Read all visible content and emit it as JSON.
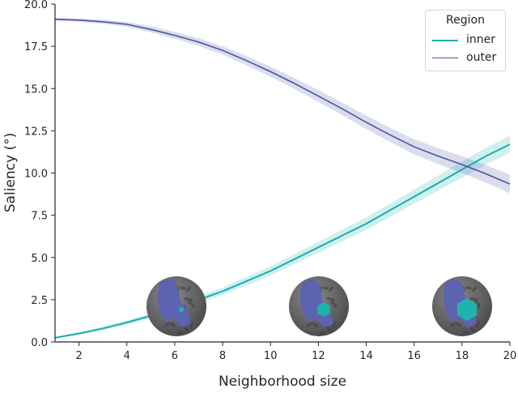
{
  "chart_data": {
    "type": "line",
    "title": "",
    "xlabel": "Neighborhood size",
    "ylabel": "Saliency  (°)",
    "xlim": [
      1,
      20
    ],
    "ylim": [
      0,
      20
    ],
    "xticks": [
      2,
      4,
      6,
      8,
      10,
      12,
      14,
      16,
      18,
      20
    ],
    "yticks": [
      "0.0",
      "2.5",
      "5.0",
      "7.5",
      "10.0",
      "12.5",
      "15.0",
      "17.5",
      "20.0"
    ],
    "grid": false,
    "legend": {
      "title": "Region",
      "position": "upper right",
      "entries": [
        "inner",
        "outer"
      ]
    },
    "x": [
      1,
      2,
      3,
      4,
      5,
      6,
      7,
      8,
      9,
      10,
      11,
      12,
      13,
      14,
      15,
      16,
      17,
      18,
      19,
      20
    ],
    "series": [
      {
        "name": "inner",
        "color": "#1aaeae",
        "values": [
          0.25,
          0.5,
          0.8,
          1.15,
          1.55,
          2.0,
          2.5,
          3.0,
          3.6,
          4.2,
          4.9,
          5.6,
          6.3,
          7.0,
          7.8,
          8.6,
          9.4,
          10.2,
          11.0,
          11.7
        ],
        "ci_halfwidth": [
          0.05,
          0.08,
          0.1,
          0.12,
          0.15,
          0.18,
          0.2,
          0.22,
          0.25,
          0.27,
          0.3,
          0.32,
          0.35,
          0.37,
          0.4,
          0.42,
          0.45,
          0.48,
          0.5,
          0.52
        ]
      },
      {
        "name": "outer",
        "color": "#4a55a2",
        "values": [
          19.1,
          19.05,
          18.95,
          18.8,
          18.5,
          18.15,
          17.75,
          17.25,
          16.65,
          16.0,
          15.3,
          14.55,
          13.8,
          13.0,
          12.25,
          11.55,
          11.0,
          10.5,
          9.95,
          9.35
        ],
        "ci_halfwidth": [
          0.08,
          0.1,
          0.12,
          0.15,
          0.18,
          0.2,
          0.22,
          0.25,
          0.27,
          0.3,
          0.32,
          0.35,
          0.37,
          0.4,
          0.42,
          0.45,
          0.47,
          0.5,
          0.52,
          0.55
        ]
      }
    ],
    "annotations": [
      {
        "type": "brain-sphere-inset",
        "near_x": 6,
        "inner_region": "small"
      },
      {
        "type": "brain-sphere-inset",
        "near_x": 12,
        "inner_region": "medium"
      },
      {
        "type": "brain-sphere-inset",
        "near_x": 18,
        "inner_region": "large"
      }
    ]
  },
  "axes": {
    "xlabel": "Neighborhood size",
    "ylabel": "Saliency  (°)",
    "xtick_labels": [
      "2",
      "4",
      "6",
      "8",
      "10",
      "12",
      "14",
      "16",
      "18",
      "20"
    ],
    "ytick_labels": [
      "0.0",
      "2.5",
      "5.0",
      "7.5",
      "10.0",
      "12.5",
      "15.0",
      "17.5",
      "20.0"
    ]
  },
  "legend": {
    "title": "Region",
    "items": [
      {
        "label": "inner",
        "color": "#1aaeae"
      },
      {
        "label": "outer",
        "color": "#4a55a2"
      }
    ]
  },
  "insets": [
    {
      "label": "neighborhood-6",
      "radius": 3.5
    },
    {
      "label": "neighborhood-12",
      "radius": 9
    },
    {
      "label": "neighborhood-18",
      "radius": 14
    }
  ]
}
